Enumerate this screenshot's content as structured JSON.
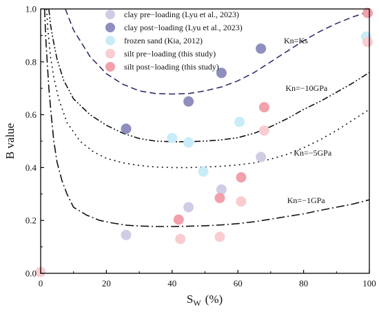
{
  "chart_data": {
    "type": "scatter",
    "xlabel_main": "S",
    "xlabel_sub": "W",
    "xlabel_unit": "(%)",
    "ylabel": "B value",
    "xlim": [
      0,
      100
    ],
    "ylim": [
      0,
      1.0
    ],
    "x_ticks": [
      "0",
      "20",
      "40",
      "60",
      "80",
      "100"
    ],
    "y_ticks": [
      "0.0",
      "0.2",
      "0.4",
      "0.6",
      "0.8",
      "1.0"
    ],
    "grid": false,
    "legend_position": "top-center",
    "series": [
      {
        "name": "clay pre−loading (Lyu et al., 2023)",
        "color": "#cfcde6",
        "points": [
          [
            26,
            0.145
          ],
          [
            45,
            0.25
          ],
          [
            55,
            0.317
          ],
          [
            67,
            0.44
          ]
        ]
      },
      {
        "name": "clay post−loading (Lyu et al., 2023)",
        "color": "#8e8ebf",
        "points": [
          [
            26,
            0.547
          ],
          [
            45,
            0.65
          ],
          [
            55,
            0.758
          ],
          [
            67,
            0.85
          ]
        ]
      },
      {
        "name": "frozen sand  (Kia, 2012)",
        "color": "#c8ecf8",
        "points": [
          [
            40,
            0.512
          ],
          [
            45,
            0.495
          ],
          [
            49.5,
            0.385
          ],
          [
            60.5,
            0.573
          ],
          [
            99,
            0.895
          ]
        ]
      },
      {
        "name": "silt pre−loading (this study)",
        "color": "#f9cdd0",
        "points": [
          [
            0,
            0.005
          ],
          [
            42.5,
            0.13
          ],
          [
            54.5,
            0.138
          ],
          [
            61,
            0.272
          ],
          [
            68,
            0.54
          ],
          [
            99.5,
            0.875
          ]
        ]
      },
      {
        "name": "silt post−loading (this study)",
        "color": "#f2a0ab",
        "points": [
          [
            42,
            0.203
          ],
          [
            54.5,
            0.285
          ],
          [
            61,
            0.363
          ],
          [
            68,
            0.628
          ],
          [
            99.5,
            0.985
          ]
        ]
      }
    ],
    "curves": [
      {
        "label": "Kn=Ks",
        "color": "#3d2a6a",
        "dash": "9,5",
        "label_x": 74,
        "label_y": 0.87,
        "points": [
          [
            7.5,
            1.0
          ],
          [
            10,
            0.92
          ],
          [
            15,
            0.82
          ],
          [
            20,
            0.755
          ],
          [
            25,
            0.715
          ],
          [
            30,
            0.69
          ],
          [
            35,
            0.68
          ],
          [
            40,
            0.678
          ],
          [
            45,
            0.68
          ],
          [
            50,
            0.69
          ],
          [
            55,
            0.705
          ],
          [
            60,
            0.728
          ],
          [
            65,
            0.76
          ],
          [
            70,
            0.8
          ],
          [
            75,
            0.84
          ],
          [
            80,
            0.88
          ],
          [
            85,
            0.915
          ],
          [
            90,
            0.945
          ],
          [
            95,
            0.97
          ],
          [
            100,
            0.99
          ]
        ]
      },
      {
        "label": "Kn=−10GPa",
        "color": "#111111",
        "dash": "9,3,2,3,2,3",
        "label_x": 74.5,
        "label_y": 0.69,
        "points": [
          [
            2.5,
            1.0
          ],
          [
            3,
            0.94
          ],
          [
            4,
            0.87
          ],
          [
            5,
            0.81
          ],
          [
            7,
            0.73
          ],
          [
            10,
            0.66
          ],
          [
            15,
            0.6
          ],
          [
            20,
            0.56
          ],
          [
            25,
            0.53
          ],
          [
            30,
            0.51
          ],
          [
            35,
            0.5
          ],
          [
            40,
            0.498
          ],
          [
            45,
            0.498
          ],
          [
            50,
            0.5
          ],
          [
            55,
            0.505
          ],
          [
            60,
            0.513
          ],
          [
            65,
            0.53
          ],
          [
            70,
            0.555
          ],
          [
            75,
            0.585
          ],
          [
            80,
            0.62
          ],
          [
            85,
            0.65
          ],
          [
            90,
            0.685
          ],
          [
            95,
            0.72
          ],
          [
            100,
            0.76
          ]
        ]
      },
      {
        "label": "Kn=−5GPa",
        "color": "#111111",
        "dash": "2,5",
        "label_x": 77,
        "label_y": 0.445,
        "points": [
          [
            1.8,
            1.0
          ],
          [
            2.2,
            0.92
          ],
          [
            3,
            0.82
          ],
          [
            4,
            0.74
          ],
          [
            5.5,
            0.66
          ],
          [
            8,
            0.57
          ],
          [
            12,
            0.5
          ],
          [
            16,
            0.46
          ],
          [
            20,
            0.435
          ],
          [
            25,
            0.418
          ],
          [
            30,
            0.408
          ],
          [
            35,
            0.402
          ],
          [
            40,
            0.4
          ],
          [
            45,
            0.4
          ],
          [
            50,
            0.402
          ],
          [
            55,
            0.405
          ],
          [
            60,
            0.41
          ],
          [
            65,
            0.418
          ],
          [
            70,
            0.432
          ],
          [
            75,
            0.45
          ],
          [
            80,
            0.475
          ],
          [
            85,
            0.505
          ],
          [
            90,
            0.54
          ],
          [
            95,
            0.58
          ],
          [
            100,
            0.62
          ]
        ]
      },
      {
        "label": "Kn=−1GPa",
        "color": "#111111",
        "dash": "12,4,2,4",
        "label_x": 75,
        "label_y": 0.265,
        "points": [
          [
            1.2,
            1.0
          ],
          [
            1.5,
            0.9
          ],
          [
            2,
            0.8
          ],
          [
            2.5,
            0.7
          ],
          [
            3.2,
            0.6
          ],
          [
            4,
            0.5
          ],
          [
            5,
            0.42
          ],
          [
            6.5,
            0.35
          ],
          [
            8,
            0.3
          ],
          [
            10,
            0.25
          ],
          [
            14,
            0.22
          ],
          [
            18,
            0.2
          ],
          [
            22,
            0.19
          ],
          [
            26,
            0.182
          ],
          [
            30,
            0.179
          ],
          [
            35,
            0.177
          ],
          [
            40,
            0.177
          ],
          [
            45,
            0.178
          ],
          [
            50,
            0.18
          ],
          [
            55,
            0.183
          ],
          [
            60,
            0.188
          ],
          [
            65,
            0.195
          ],
          [
            70,
            0.205
          ],
          [
            75,
            0.215
          ],
          [
            80,
            0.225
          ],
          [
            85,
            0.238
          ],
          [
            90,
            0.25
          ],
          [
            95,
            0.262
          ],
          [
            100,
            0.278
          ]
        ]
      }
    ]
  }
}
